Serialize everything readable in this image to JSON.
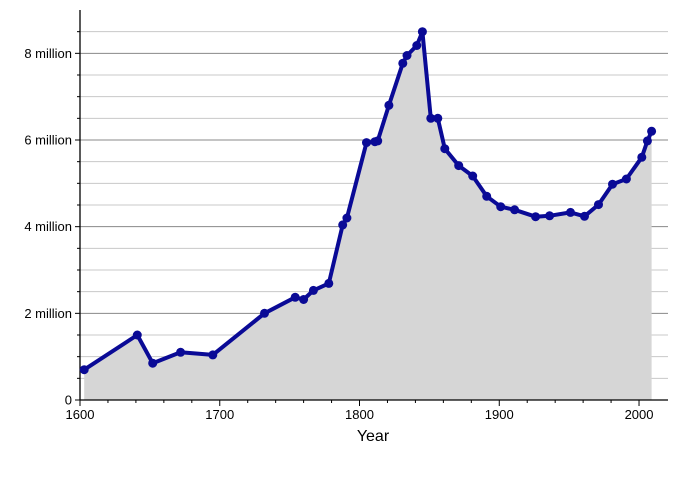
{
  "chart_data": {
    "type": "area",
    "title": "",
    "xlabel": "Year",
    "ylabel": "",
    "xlim": [
      1600,
      2010
    ],
    "ylim": [
      0,
      9000000
    ],
    "grid": true,
    "legend": "none",
    "colors": {
      "line": "#0a0a96",
      "fill": "#d6d6d6",
      "grid_major": "#888888",
      "grid_minor": "#c8c8c8"
    },
    "x_ticks": [
      {
        "value": 1600,
        "label": "1600"
      },
      {
        "value": 1700,
        "label": "1700"
      },
      {
        "value": 1800,
        "label": "1800"
      },
      {
        "value": 1900,
        "label": "1900"
      },
      {
        "value": 2000,
        "label": "2000"
      }
    ],
    "y_ticks": [
      {
        "value": 0,
        "label": "0"
      },
      {
        "value": 2000000,
        "label": "2 million"
      },
      {
        "value": 4000000,
        "label": "4 million"
      },
      {
        "value": 6000000,
        "label": "6 million"
      },
      {
        "value": 8000000,
        "label": "8 million"
      }
    ],
    "y_minor_step": 500000,
    "series": [
      {
        "x": [
          1603,
          1641,
          1652,
          1672,
          1695,
          1732,
          1754,
          1760,
          1767,
          1778,
          1788,
          1791,
          1805,
          1811,
          1813,
          1821,
          1831,
          1834,
          1841,
          1845,
          1851,
          1856,
          1861,
          1871,
          1881,
          1891,
          1901,
          1911,
          1926,
          1936,
          1951,
          1961,
          1971,
          1981,
          1991,
          2002,
          2006,
          2009
        ],
        "y": [
          700000,
          1500000,
          850000,
          1100000,
          1040000,
          2000000,
          2370000,
          2320000,
          2530000,
          2690000,
          4040000,
          4200000,
          5940000,
          5960000,
          5980000,
          6800000,
          7770000,
          7950000,
          8180000,
          8500000,
          6500000,
          6500000,
          5800000,
          5410000,
          5170000,
          4700000,
          4460000,
          4390000,
          4230000,
          4250000,
          4330000,
          4240000,
          4510000,
          4980000,
          5100000,
          5600000,
          5980000,
          6200000
        ]
      }
    ]
  }
}
